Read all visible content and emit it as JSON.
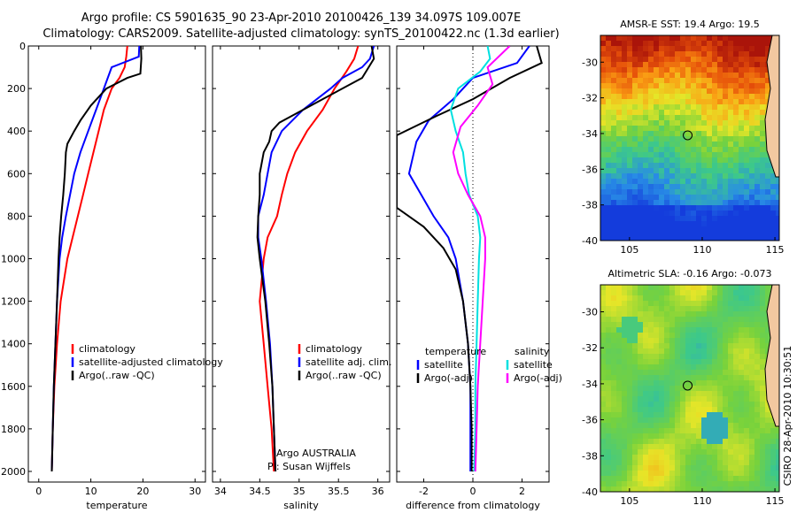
{
  "header": {
    "line1": "Argo profile: CS 5901635_90 23-Apr-2010 20100426_139 34.097S 109.007E",
    "line2": "Climatology: CARS2009. Satellite-adjusted climatology: synTS_20100422.nc (1.3d earlier)"
  },
  "side_label": "CSIRO 28-Apr-2010 10:30:51",
  "colors": {
    "climatology": "#ff0000",
    "satellite": "#0000ff",
    "argo": "#000000",
    "sal_diff": "#00e0e0",
    "sal_argo": "#ff00ff"
  },
  "chart_data": [
    {
      "type": "line",
      "id": "temperature",
      "xlabel": "temperature",
      "ylabel": "",
      "xlim": [
        -2,
        32
      ],
      "ylim": [
        2050,
        0
      ],
      "xticks": [
        "0",
        "10",
        "20",
        "30"
      ],
      "xtick_values": [
        0,
        10,
        20,
        30
      ],
      "yticks": [
        "0",
        "200",
        "400",
        "600",
        "800",
        "1000",
        "1200",
        "1400",
        "1600",
        "1800",
        "2000"
      ],
      "ytick_values": [
        0,
        200,
        400,
        600,
        800,
        1000,
        1200,
        1400,
        1600,
        1800,
        2000
      ],
      "legend": [
        "climatology",
        "satellite-adjusted climatology",
        "Argo(..raw -QC)"
      ],
      "series": [
        {
          "name": "climatology",
          "color": "#ff0000",
          "points": [
            [
              17,
              0
            ],
            [
              16.8,
              50
            ],
            [
              16.5,
              100
            ],
            [
              15.5,
              150
            ],
            [
              14,
              200
            ],
            [
              12.5,
              300
            ],
            [
              11.5,
              400
            ],
            [
              10.5,
              500
            ],
            [
              9.5,
              600
            ],
            [
              8.5,
              700
            ],
            [
              7.5,
              800
            ],
            [
              6.5,
              900
            ],
            [
              5.5,
              1000
            ],
            [
              4.2,
              1200
            ],
            [
              3.5,
              1400
            ],
            [
              3,
              1600
            ],
            [
              2.7,
              1800
            ],
            [
              2.5,
              2000
            ]
          ]
        },
        {
          "name": "satellite-adjusted climatology",
          "color": "#0000ff",
          "points": [
            [
              19.3,
              0
            ],
            [
              19.2,
              50
            ],
            [
              14,
              100
            ],
            [
              12.5,
              200
            ],
            [
              11,
              300
            ],
            [
              9.5,
              400
            ],
            [
              8,
              500
            ],
            [
              6.8,
              600
            ],
            [
              6,
              700
            ],
            [
              5.2,
              800
            ],
            [
              4.5,
              900
            ],
            [
              4,
              1000
            ],
            [
              3.5,
              1200
            ],
            [
              3.2,
              1400
            ],
            [
              2.9,
              1600
            ],
            [
              2.7,
              1800
            ],
            [
              2.5,
              2000
            ]
          ]
        },
        {
          "name": "Argo(..raw -QC)",
          "color": "#000000",
          "points": [
            [
              19.6,
              0
            ],
            [
              19.7,
              60
            ],
            [
              19.5,
              130
            ],
            [
              17,
              150
            ],
            [
              13,
              200
            ],
            [
              10,
              280
            ],
            [
              8,
              350
            ],
            [
              6.8,
              400
            ],
            [
              5.5,
              460
            ],
            [
              5.2,
              500
            ],
            [
              5,
              600
            ],
            [
              4.7,
              700
            ],
            [
              4.3,
              800
            ],
            [
              4,
              900
            ],
            [
              3.8,
              1000
            ],
            [
              3.5,
              1200
            ],
            [
              3.2,
              1400
            ],
            [
              2.9,
              1600
            ],
            [
              2.7,
              1800
            ],
            [
              2.5,
              2000
            ]
          ]
        }
      ]
    },
    {
      "type": "line",
      "id": "salinity",
      "xlabel": "salinity",
      "xlim": [
        33.9,
        36.15
      ],
      "ylim": [
        2050,
        0
      ],
      "xticks": [
        "34",
        "34.5",
        "35",
        "35.5",
        "36"
      ],
      "xtick_values": [
        34,
        34.5,
        35,
        35.5,
        36
      ],
      "legend": [
        "climatology",
        "satellite adj. clim.",
        "Argo(..raw -QC)"
      ],
      "annotation": [
        "Argo AUSTRALIA",
        "PI: Susan Wijffels"
      ],
      "series": [
        {
          "name": "climatology",
          "color": "#ff0000",
          "points": [
            [
              35.75,
              0
            ],
            [
              35.7,
              60
            ],
            [
              35.6,
              120
            ],
            [
              35.45,
              200
            ],
            [
              35.3,
              300
            ],
            [
              35.1,
              400
            ],
            [
              34.95,
              500
            ],
            [
              34.85,
              600
            ],
            [
              34.78,
              700
            ],
            [
              34.72,
              800
            ],
            [
              34.6,
              900
            ],
            [
              34.55,
              1000
            ],
            [
              34.5,
              1200
            ],
            [
              34.55,
              1400
            ],
            [
              34.6,
              1600
            ],
            [
              34.65,
              1800
            ],
            [
              34.68,
              2000
            ]
          ]
        },
        {
          "name": "satellite adj. clim.",
          "color": "#0000ff",
          "points": [
            [
              35.95,
              0
            ],
            [
              35.9,
              60
            ],
            [
              35.8,
              100
            ],
            [
              35.55,
              150
            ],
            [
              35.4,
              200
            ],
            [
              35.05,
              300
            ],
            [
              34.78,
              400
            ],
            [
              34.65,
              500
            ],
            [
              34.6,
              600
            ],
            [
              34.55,
              700
            ],
            [
              34.48,
              800
            ],
            [
              34.48,
              900
            ],
            [
              34.52,
              1000
            ],
            [
              34.58,
              1200
            ],
            [
              34.63,
              1400
            ],
            [
              34.66,
              1600
            ],
            [
              34.68,
              1800
            ],
            [
              34.7,
              2000
            ]
          ]
        },
        {
          "name": "Argo(..raw -QC)",
          "color": "#000000",
          "points": [
            [
              35.92,
              0
            ],
            [
              35.95,
              60
            ],
            [
              35.8,
              150
            ],
            [
              35.3,
              250
            ],
            [
              34.95,
              320
            ],
            [
              34.75,
              360
            ],
            [
              34.65,
              400
            ],
            [
              34.62,
              450
            ],
            [
              34.55,
              500
            ],
            [
              34.5,
              600
            ],
            [
              34.5,
              700
            ],
            [
              34.48,
              800
            ],
            [
              34.47,
              900
            ],
            [
              34.5,
              1000
            ],
            [
              34.57,
              1200
            ],
            [
              34.62,
              1400
            ],
            [
              34.66,
              1600
            ],
            [
              34.68,
              1800
            ],
            [
              34.7,
              2000
            ]
          ]
        }
      ]
    },
    {
      "type": "line",
      "id": "difference",
      "xlabel": "difference from climatology",
      "xlim": [
        -3.1,
        3.1
      ],
      "ylim": [
        2050,
        0
      ],
      "xticks": [
        "-2",
        "0",
        "2"
      ],
      "xtick_values": [
        -2,
        0,
        2
      ],
      "legend_left_title": "temperature",
      "legend_right_title": "salinity",
      "legend": [
        "satellite",
        "Argo(-adj)",
        "satellite",
        "Argo(-adj)"
      ],
      "series": [
        {
          "name": "temperature satellite",
          "color": "#0000ff",
          "points": [
            [
              2.3,
              0
            ],
            [
              1.8,
              80
            ],
            [
              0,
              150
            ],
            [
              -0.8,
              250
            ],
            [
              -1.8,
              350
            ],
            [
              -2.3,
              450
            ],
            [
              -2.6,
              600
            ],
            [
              -2.1,
              700
            ],
            [
              -1.6,
              800
            ],
            [
              -1,
              900
            ],
            [
              -0.7,
              1000
            ],
            [
              -0.4,
              1200
            ],
            [
              -0.2,
              1400
            ],
            [
              -0.1,
              1600
            ],
            [
              -0.1,
              1800
            ],
            [
              -0.1,
              2000
            ]
          ]
        },
        {
          "name": "temperature Argo(-adj)",
          "color": "#000000",
          "points": [
            [
              2.6,
              0
            ],
            [
              2.8,
              80
            ],
            [
              1.5,
              150
            ],
            [
              0,
              250
            ],
            [
              -1.5,
              330
            ],
            [
              -3.1,
              420
            ],
            [
              -3.1,
              760
            ],
            [
              -2,
              850
            ],
            [
              -1.2,
              950
            ],
            [
              -0.7,
              1050
            ],
            [
              -0.4,
              1200
            ],
            [
              -0.2,
              1400
            ],
            [
              -0.1,
              1600
            ],
            [
              -0.05,
              1800
            ],
            [
              -0.05,
              2000
            ]
          ]
        },
        {
          "name": "salinity satellite",
          "color": "#00e0e0",
          "points": [
            [
              0.6,
              0
            ],
            [
              0.7,
              60
            ],
            [
              0.3,
              120
            ],
            [
              -0.6,
              200
            ],
            [
              -0.9,
              300
            ],
            [
              -0.7,
              400
            ],
            [
              -0.4,
              500
            ],
            [
              -0.3,
              600
            ],
            [
              -0.15,
              700
            ],
            [
              0.2,
              800
            ],
            [
              0.3,
              900
            ],
            [
              0.25,
              1000
            ],
            [
              0.2,
              1200
            ],
            [
              0.15,
              1400
            ],
            [
              0.1,
              1600
            ],
            [
              0.1,
              1800
            ],
            [
              0.05,
              2000
            ]
          ]
        },
        {
          "name": "salinity Argo(-adj)",
          "color": "#ff00ff",
          "points": [
            [
              1.5,
              0
            ],
            [
              0.6,
              100
            ],
            [
              0.8,
              180
            ],
            [
              0.2,
              280
            ],
            [
              -0.5,
              380
            ],
            [
              -0.8,
              500
            ],
            [
              -0.6,
              600
            ],
            [
              -0.2,
              700
            ],
            [
              0.3,
              800
            ],
            [
              0.5,
              900
            ],
            [
              0.5,
              1000
            ],
            [
              0.4,
              1200
            ],
            [
              0.3,
              1400
            ],
            [
              0.2,
              1600
            ],
            [
              0.15,
              1800
            ],
            [
              0.1,
              2000
            ]
          ]
        }
      ]
    },
    {
      "type": "heatmap",
      "id": "sst_map",
      "title": "AMSR-E SST: 19.4 Argo: 19.5",
      "xlim": [
        103,
        115.3
      ],
      "ylim": [
        -40,
        -28.5
      ],
      "xticks": [
        "105",
        "110",
        "115"
      ],
      "xtick_values": [
        105,
        110,
        115
      ],
      "yticks": [
        "-30",
        "-32",
        "-34",
        "-36",
        "-38",
        "-40"
      ],
      "ytick_values": [
        -30,
        -32,
        -34,
        -36,
        -38,
        -40
      ],
      "argo_position": [
        109.0,
        -34.1
      ]
    },
    {
      "type": "heatmap",
      "id": "sla_map",
      "title": "Altimetric SLA: -0.16 Argo: -0.073",
      "xlim": [
        103,
        115.3
      ],
      "ylim": [
        -40,
        -28.5
      ],
      "xticks": [
        "105",
        "110",
        "115"
      ],
      "xtick_values": [
        105,
        110,
        115
      ],
      "yticks": [
        "-30",
        "-32",
        "-34",
        "-36",
        "-38",
        "-40"
      ],
      "ytick_values": [
        -30,
        -32,
        -34,
        -36,
        -38,
        -40
      ],
      "argo_position": [
        109.0,
        -34.1
      ]
    }
  ]
}
